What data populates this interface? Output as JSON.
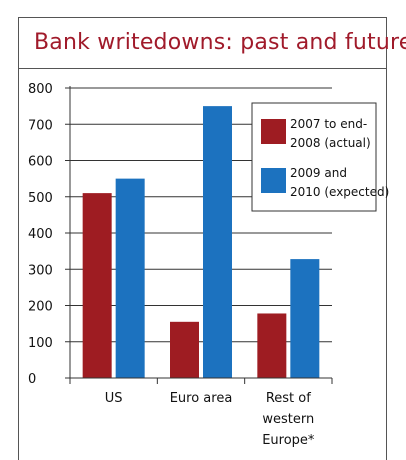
{
  "chart_data": {
    "type": "bar",
    "title": "Bank writedowns: past and future",
    "categories": [
      "US",
      "Euro area",
      "Rest of|western|Europe*"
    ],
    "series": [
      {
        "name": "2007 to end-2008 (actual)",
        "values": [
          510,
          155,
          178
        ]
      },
      {
        "name": "2009 and 2010 (expected)",
        "values": [
          550,
          750,
          328
        ]
      }
    ],
    "legend_lines": [
      [
        "2007 to end-",
        "2008 (actual)"
      ],
      [
        "2009 and",
        "2010 (expected)"
      ]
    ],
    "ylim": [
      0,
      800
    ],
    "yticks": [
      0,
      100,
      200,
      300,
      400,
      500,
      600,
      700,
      800
    ],
    "grid": true,
    "legend_position": "top-right",
    "colors": [
      "#9e1c22",
      "#1c72bf"
    ],
    "xlabel": "",
    "ylabel": ""
  }
}
